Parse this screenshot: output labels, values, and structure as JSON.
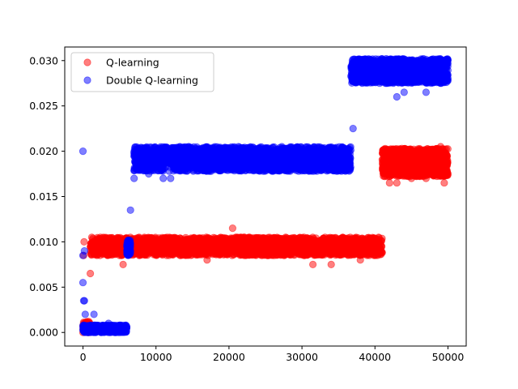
{
  "chart_data": {
    "type": "scatter",
    "title": "",
    "xlabel": "",
    "ylabel": "",
    "xlim": [
      -2500,
      52500
    ],
    "ylim": [
      -0.0015,
      0.0315
    ],
    "xticks": [
      0,
      10000,
      20000,
      30000,
      40000,
      50000
    ],
    "xtick_labels": [
      "0",
      "10000",
      "20000",
      "30000",
      "40000",
      "50000"
    ],
    "yticks": [
      0.0,
      0.005,
      0.01,
      0.015,
      0.02,
      0.025,
      0.03
    ],
    "ytick_labels": [
      "0.000",
      "0.005",
      "0.010",
      "0.015",
      "0.020",
      "0.025",
      "0.030"
    ],
    "grid": false,
    "legend_position": "upper left",
    "series": [
      {
        "name": "Q-learning",
        "color": "#ff0000",
        "alpha": 0.5,
        "marker": "circle",
        "points": [
          [
            0,
            0.0
          ],
          [
            100,
            0.0085
          ],
          [
            150,
            0.01
          ],
          [
            300,
            0.0005
          ],
          [
            500,
            0.001
          ],
          [
            800,
            0.0
          ],
          [
            1000,
            0.0065
          ],
          [
            1200,
            0.0105
          ],
          [
            5500,
            0.0075
          ],
          [
            6000,
            0.0095
          ],
          [
            17000,
            0.008
          ],
          [
            20500,
            0.0115
          ],
          [
            21000,
            0.0105
          ],
          [
            31500,
            0.0075
          ],
          [
            34000,
            0.0075
          ],
          [
            38000,
            0.008
          ],
          [
            40500,
            0.0105
          ],
          [
            41500,
            0.0185
          ],
          [
            42000,
            0.0165
          ],
          [
            42500,
            0.0195
          ],
          [
            43000,
            0.0165
          ],
          [
            45000,
            0.017
          ],
          [
            47000,
            0.017
          ],
          [
            49000,
            0.0205
          ],
          [
            49500,
            0.0165
          ],
          [
            50000,
            0.0175
          ]
        ],
        "bands": [
          {
            "x": [
              0,
              1000
            ],
            "y": [
              0.0,
              0.0012
            ],
            "count": 60
          },
          {
            "x": [
              1000,
              41000
            ],
            "y": [
              0.0085,
              0.0105
            ],
            "count": 2600
          },
          {
            "x": [
              41000,
              50000
            ],
            "y": [
              0.0172,
              0.0203
            ],
            "count": 1100
          }
        ]
      },
      {
        "name": "Double Q-learning",
        "color": "#0000ff",
        "alpha": 0.5,
        "marker": "circle",
        "points": [
          [
            0,
            0.02
          ],
          [
            0,
            0.0055
          ],
          [
            0,
            0.0085
          ],
          [
            100,
            0.0035
          ],
          [
            200,
            0.0035
          ],
          [
            200,
            0.009
          ],
          [
            300,
            0.002
          ],
          [
            1500,
            0.002
          ],
          [
            3500,
            0.001
          ],
          [
            6500,
            0.0135
          ],
          [
            6000,
            0.0095
          ],
          [
            6200,
            0.0085
          ],
          [
            7000,
            0.017
          ],
          [
            9000,
            0.0175
          ],
          [
            11000,
            0.017
          ],
          [
            12000,
            0.017
          ],
          [
            14500,
            0.0205
          ],
          [
            18500,
            0.018
          ],
          [
            36500,
            0.0185
          ],
          [
            37000,
            0.0225
          ],
          [
            43000,
            0.026
          ],
          [
            44000,
            0.0265
          ],
          [
            47000,
            0.0265
          ],
          [
            49000,
            0.0275
          ],
          [
            50000,
            0.028
          ]
        ],
        "bands": [
          {
            "x": [
              0,
              6000
            ],
            "y": [
              0.0,
              0.0008
            ],
            "count": 500
          },
          {
            "x": [
              6000,
              6500
            ],
            "y": [
              0.0085,
              0.0102
            ],
            "count": 60
          },
          {
            "x": [
              7000,
              36700
            ],
            "y": [
              0.0178,
              0.0205
            ],
            "count": 2400
          },
          {
            "x": [
              36700,
              50000
            ],
            "y": [
              0.0275,
              0.0302
            ],
            "count": 1500
          }
        ]
      }
    ]
  }
}
